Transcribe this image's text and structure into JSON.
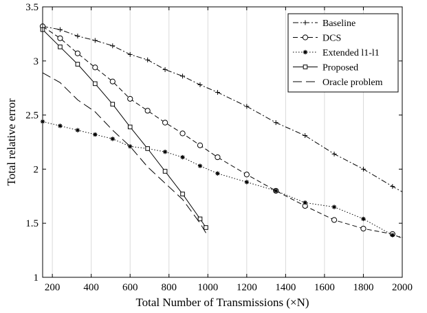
{
  "chart_data": {
    "type": "line",
    "xlabel": "Total Number of Transmissions (×N)",
    "ylabel": "Total relative error",
    "xlim": [
      150,
      2000
    ],
    "ylim": [
      1,
      3.5
    ],
    "xticks": [
      200,
      400,
      600,
      800,
      1000,
      1200,
      1400,
      1600,
      1800,
      2000
    ],
    "yticks": [
      1,
      1.5,
      2,
      2.5,
      3,
      3.5
    ],
    "ytick_labels": [
      "1",
      "1.5",
      "2",
      "2.5",
      "3",
      "3.5"
    ],
    "grid": "vertical",
    "legend_position": "top-right",
    "series": [
      {
        "name": "Baseline",
        "style": "dash-dot",
        "marker": "plus",
        "line": [
          [
            150,
            3.32
          ],
          [
            240,
            3.29
          ],
          [
            330,
            3.23
          ],
          [
            420,
            3.19
          ],
          [
            510,
            3.14
          ],
          [
            600,
            3.06
          ],
          [
            690,
            3.01
          ],
          [
            780,
            2.92
          ],
          [
            870,
            2.86
          ],
          [
            960,
            2.78
          ],
          [
            1050,
            2.71
          ],
          [
            1200,
            2.58
          ],
          [
            1350,
            2.43
          ],
          [
            1500,
            2.31
          ],
          [
            1650,
            2.14
          ],
          [
            1800,
            2.0
          ],
          [
            1950,
            1.84
          ],
          [
            2000,
            1.79
          ]
        ],
        "points": [
          [
            150,
            3.32
          ],
          [
            240,
            3.29
          ],
          [
            330,
            3.23
          ],
          [
            420,
            3.19
          ],
          [
            510,
            3.14
          ],
          [
            600,
            3.06
          ],
          [
            690,
            3.01
          ],
          [
            780,
            2.92
          ],
          [
            870,
            2.86
          ],
          [
            960,
            2.78
          ],
          [
            1050,
            2.71
          ],
          [
            1200,
            2.58
          ],
          [
            1350,
            2.43
          ],
          [
            1500,
            2.31
          ],
          [
            1650,
            2.14
          ],
          [
            1800,
            2.0
          ],
          [
            1950,
            1.84
          ]
        ]
      },
      {
        "name": "DCS",
        "style": "dashed",
        "marker": "circle",
        "line": [
          [
            150,
            3.32
          ],
          [
            240,
            3.21
          ],
          [
            330,
            3.07
          ],
          [
            420,
            2.94
          ],
          [
            510,
            2.81
          ],
          [
            600,
            2.65
          ],
          [
            690,
            2.54
          ],
          [
            780,
            2.43
          ],
          [
            870,
            2.33
          ],
          [
            960,
            2.22
          ],
          [
            1050,
            2.11
          ],
          [
            1200,
            1.95
          ],
          [
            1350,
            1.8
          ],
          [
            1500,
            1.66
          ],
          [
            1650,
            1.53
          ],
          [
            1800,
            1.45
          ],
          [
            1950,
            1.4
          ],
          [
            2000,
            1.36
          ]
        ],
        "points": [
          [
            150,
            3.32
          ],
          [
            240,
            3.21
          ],
          [
            330,
            3.07
          ],
          [
            420,
            2.94
          ],
          [
            510,
            2.81
          ],
          [
            600,
            2.65
          ],
          [
            690,
            2.54
          ],
          [
            780,
            2.43
          ],
          [
            870,
            2.33
          ],
          [
            960,
            2.22
          ],
          [
            1050,
            2.11
          ],
          [
            1200,
            1.95
          ],
          [
            1350,
            1.8
          ],
          [
            1500,
            1.66
          ],
          [
            1650,
            1.53
          ],
          [
            1800,
            1.45
          ],
          [
            1950,
            1.4
          ]
        ]
      },
      {
        "name": "Extended l1-l1",
        "style": "dotted",
        "marker": "star",
        "line": [
          [
            150,
            2.44
          ],
          [
            240,
            2.4
          ],
          [
            330,
            2.36
          ],
          [
            420,
            2.32
          ],
          [
            510,
            2.28
          ],
          [
            600,
            2.21
          ],
          [
            690,
            2.19
          ],
          [
            780,
            2.16
          ],
          [
            870,
            2.11
          ],
          [
            960,
            2.03
          ],
          [
            1050,
            1.96
          ],
          [
            1200,
            1.88
          ],
          [
            1350,
            1.8
          ],
          [
            1500,
            1.69
          ],
          [
            1650,
            1.65
          ],
          [
            1800,
            1.54
          ],
          [
            1950,
            1.39
          ],
          [
            2000,
            1.37
          ]
        ],
        "points": [
          [
            150,
            2.44
          ],
          [
            240,
            2.4
          ],
          [
            330,
            2.36
          ],
          [
            420,
            2.32
          ],
          [
            510,
            2.28
          ],
          [
            600,
            2.21
          ],
          [
            690,
            2.19
          ],
          [
            780,
            2.16
          ],
          [
            870,
            2.11
          ],
          [
            960,
            2.03
          ],
          [
            1050,
            1.96
          ],
          [
            1200,
            1.88
          ],
          [
            1350,
            1.8
          ],
          [
            1500,
            1.69
          ],
          [
            1650,
            1.65
          ],
          [
            1800,
            1.54
          ],
          [
            1950,
            1.39
          ]
        ]
      },
      {
        "name": "Proposed",
        "style": "solid",
        "marker": "square",
        "line": [
          [
            150,
            3.29
          ],
          [
            240,
            3.13
          ],
          [
            330,
            2.97
          ],
          [
            420,
            2.79
          ],
          [
            510,
            2.6
          ],
          [
            600,
            2.39
          ],
          [
            690,
            2.19
          ],
          [
            780,
            1.98
          ],
          [
            870,
            1.77
          ],
          [
            960,
            1.54
          ],
          [
            990,
            1.46
          ]
        ],
        "points": [
          [
            150,
            3.29
          ],
          [
            240,
            3.13
          ],
          [
            330,
            2.97
          ],
          [
            420,
            2.79
          ],
          [
            510,
            2.6
          ],
          [
            600,
            2.39
          ],
          [
            690,
            2.19
          ],
          [
            780,
            1.98
          ],
          [
            870,
            1.77
          ],
          [
            960,
            1.54
          ],
          [
            990,
            1.46
          ]
        ]
      },
      {
        "name": "Oracle problem",
        "style": "long-dash",
        "marker": "none",
        "line": [
          [
            150,
            2.89
          ],
          [
            240,
            2.8
          ],
          [
            330,
            2.64
          ],
          [
            420,
            2.53
          ],
          [
            510,
            2.36
          ],
          [
            600,
            2.21
          ],
          [
            690,
            2.02
          ],
          [
            780,
            1.87
          ],
          [
            870,
            1.72
          ],
          [
            960,
            1.5
          ],
          [
            990,
            1.41
          ]
        ],
        "points": []
      }
    ]
  }
}
